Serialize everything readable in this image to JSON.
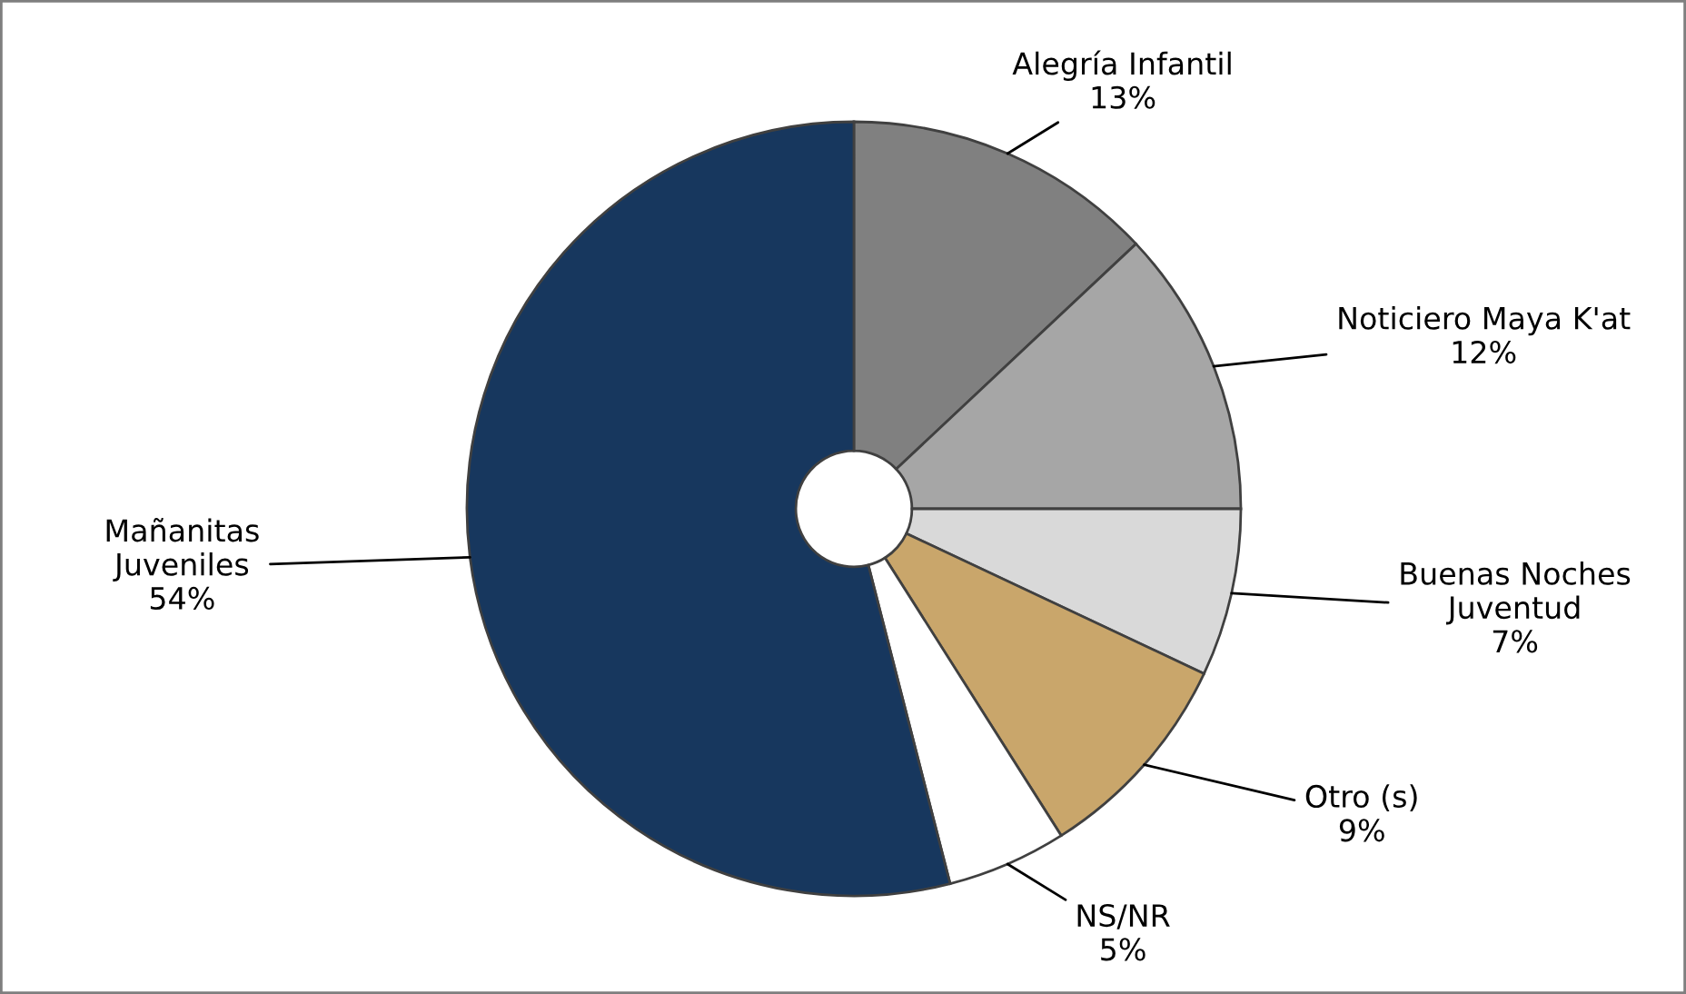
{
  "chart_data": {
    "type": "donut",
    "categories": [
      "Alegría Infantil",
      "Noticiero Maya K'at",
      "Buenas Noches\nJuventud",
      "Otro (s)",
      "NS/NR",
      "Mañanitas\nJuveniles"
    ],
    "values": [
      13,
      12,
      7,
      9,
      5,
      54
    ],
    "value_labels": [
      "13%",
      "12%",
      "7%",
      "9%",
      "5%",
      "54%"
    ],
    "colors": [
      "#808080",
      "#a6a6a6",
      "#d9d9d9",
      "#c9a66b",
      "#ffffff",
      "#17375e"
    ],
    "legend": false
  }
}
